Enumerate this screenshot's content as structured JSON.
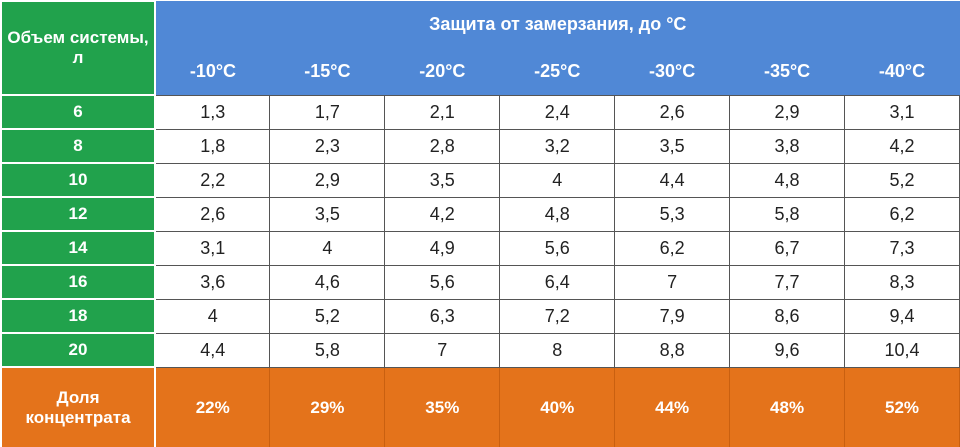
{
  "header": {
    "corner": "Объем системы, л",
    "group": "Защита от замерзания, до °С",
    "columns": [
      "-10°С",
      "-15°С",
      "-20°С",
      "-25°С",
      "-30°С",
      "-35°С",
      "-40°С"
    ]
  },
  "table": {
    "rows": [
      {
        "label": "6",
        "values": [
          "1,3",
          "1,7",
          "2,1",
          "2,4",
          "2,6",
          "2,9",
          "3,1"
        ]
      },
      {
        "label": "8",
        "values": [
          "1,8",
          "2,3",
          "2,8",
          "3,2",
          "3,5",
          "3,8",
          "4,2"
        ]
      },
      {
        "label": "10",
        "values": [
          "2,2",
          "2,9",
          "3,5",
          "4",
          "4,4",
          "4,8",
          "5,2"
        ]
      },
      {
        "label": "12",
        "values": [
          "2,6",
          "3,5",
          "4,2",
          "4,8",
          "5,3",
          "5,8",
          "6,2"
        ]
      },
      {
        "label": "14",
        "values": [
          "3,1",
          "4",
          "4,9",
          "5,6",
          "6,2",
          "6,7",
          "7,3"
        ]
      },
      {
        "label": "16",
        "values": [
          "3,6",
          "4,6",
          "5,6",
          "6,4",
          "7",
          "7,7",
          "8,3"
        ]
      },
      {
        "label": "18",
        "values": [
          "4",
          "5,2",
          "6,3",
          "7,2",
          "7,9",
          "8,6",
          "9,4"
        ]
      },
      {
        "label": "20",
        "values": [
          "4,4",
          "5,8",
          "7",
          "8",
          "8,8",
          "9,6",
          "10,4"
        ]
      }
    ]
  },
  "footer": {
    "label": "Доля концентрата",
    "values": [
      "22%",
      "29%",
      "35%",
      "40%",
      "44%",
      "48%",
      "52%"
    ]
  }
}
